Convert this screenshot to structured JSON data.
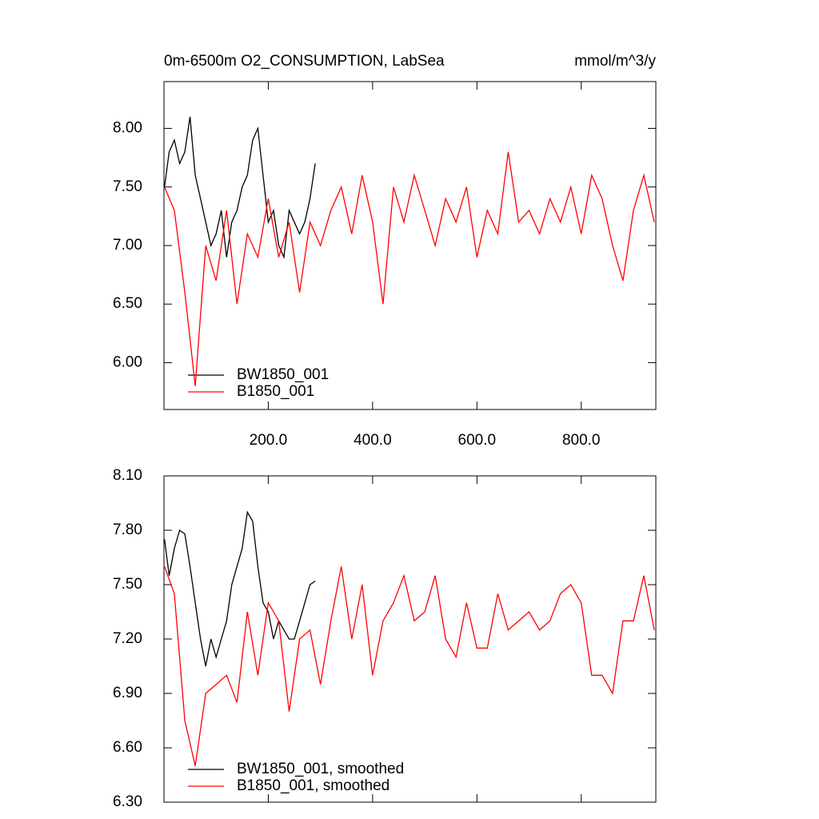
{
  "chart_data": [
    {
      "type": "line",
      "title": "0m-6500m O2_CONSUMPTION, LabSea",
      "subtitle": "mmol/m^3/y",
      "xlim": [
        0,
        943
      ],
      "ylim": [
        5.6,
        8.4
      ],
      "xticks": [
        {
          "value": 200,
          "label": "200.0"
        },
        {
          "value": 400,
          "label": "400.0"
        },
        {
          "value": 600,
          "label": "600.0"
        },
        {
          "value": 800,
          "label": "800.0"
        }
      ],
      "yticks": [
        {
          "value": 6,
          "label": "6.00"
        },
        {
          "value": 6.5,
          "label": "6.50"
        },
        {
          "value": 7,
          "label": "7.00"
        },
        {
          "value": 7.5,
          "label": "7.50"
        },
        {
          "value": 8,
          "label": "8.00"
        }
      ],
      "series": [
        {
          "name": "BW1850_001",
          "color": "#000000",
          "x": [
            1,
            10,
            20,
            30,
            40,
            50,
            60,
            70,
            80,
            90,
            100,
            110,
            120,
            130,
            140,
            150,
            160,
            170,
            180,
            190,
            200,
            210,
            220,
            230,
            240,
            250,
            260,
            270,
            280,
            290
          ],
          "values": [
            7.5,
            7.8,
            7.9,
            7.7,
            7.8,
            8.1,
            7.6,
            7.4,
            7.2,
            7.0,
            7.1,
            7.3,
            6.9,
            7.2,
            7.3,
            7.5,
            7.6,
            7.9,
            8.0,
            7.6,
            7.2,
            7.3,
            7.0,
            6.9,
            7.3,
            7.2,
            7.1,
            7.2,
            7.4,
            7.7
          ]
        },
        {
          "name": "B1850_001",
          "color": "#ff0000",
          "x": [
            1,
            20,
            40,
            60,
            80,
            100,
            120,
            140,
            160,
            180,
            200,
            220,
            240,
            260,
            280,
            300,
            320,
            340,
            360,
            380,
            400,
            420,
            440,
            460,
            480,
            500,
            520,
            540,
            560,
            580,
            600,
            620,
            640,
            660,
            680,
            700,
            720,
            740,
            760,
            780,
            800,
            820,
            840,
            860,
            880,
            900,
            920,
            940
          ],
          "values": [
            7.5,
            7.3,
            6.6,
            5.8,
            7.0,
            6.7,
            7.3,
            6.5,
            7.1,
            6.9,
            7.4,
            6.9,
            7.2,
            6.6,
            7.2,
            7.0,
            7.3,
            7.5,
            7.1,
            7.6,
            7.2,
            6.5,
            7.5,
            7.2,
            7.6,
            7.3,
            7.0,
            7.4,
            7.2,
            7.5,
            6.9,
            7.3,
            7.1,
            7.8,
            7.2,
            7.3,
            7.1,
            7.4,
            7.2,
            7.5,
            7.1,
            7.6,
            7.4,
            7.0,
            6.7,
            7.3,
            7.6,
            7.2
          ]
        }
      ]
    },
    {
      "type": "line",
      "xlim": [
        0,
        943
      ],
      "ylim": [
        6.3,
        8.1
      ],
      "yticks": [
        {
          "value": 6.3,
          "label": "6.30"
        },
        {
          "value": 6.6,
          "label": "6.60"
        },
        {
          "value": 6.9,
          "label": "6.90"
        },
        {
          "value": 7.2,
          "label": "7.20"
        },
        {
          "value": 7.5,
          "label": "7.50"
        },
        {
          "value": 7.8,
          "label": "7.80"
        },
        {
          "value": 8.1,
          "label": "8.10"
        }
      ],
      "series": [
        {
          "name": "BW1850_001, smoothed",
          "color": "#000000",
          "x": [
            1,
            10,
            20,
            30,
            40,
            50,
            60,
            70,
            80,
            90,
            100,
            110,
            120,
            130,
            140,
            150,
            160,
            170,
            180,
            190,
            200,
            210,
            220,
            230,
            240,
            250,
            260,
            270,
            280,
            290
          ],
          "values": [
            7.75,
            7.55,
            7.7,
            7.8,
            7.78,
            7.6,
            7.4,
            7.2,
            7.05,
            7.2,
            7.1,
            7.2,
            7.3,
            7.5,
            7.6,
            7.7,
            7.9,
            7.85,
            7.6,
            7.4,
            7.35,
            7.2,
            7.3,
            7.25,
            7.2,
            7.2,
            7.3,
            7.4,
            7.5,
            7.52
          ]
        },
        {
          "name": "B1850_001, smoothed",
          "color": "#ff0000",
          "x": [
            1,
            20,
            40,
            60,
            80,
            100,
            120,
            140,
            160,
            180,
            200,
            220,
            240,
            260,
            280,
            300,
            320,
            340,
            360,
            380,
            400,
            420,
            440,
            460,
            480,
            500,
            520,
            540,
            560,
            580,
            600,
            620,
            640,
            660,
            680,
            700,
            720,
            740,
            760,
            780,
            800,
            820,
            840,
            860,
            880,
            900,
            920,
            940
          ],
          "values": [
            7.6,
            7.45,
            6.75,
            6.5,
            6.9,
            6.95,
            7.0,
            6.85,
            7.35,
            7.0,
            7.4,
            7.3,
            6.8,
            7.2,
            7.25,
            6.95,
            7.3,
            7.6,
            7.2,
            7.5,
            7.0,
            7.3,
            7.4,
            7.55,
            7.3,
            7.35,
            7.55,
            7.2,
            7.1,
            7.4,
            7.15,
            7.15,
            7.45,
            7.25,
            7.3,
            7.35,
            7.25,
            7.3,
            7.45,
            7.5,
            7.4,
            7.0,
            7.0,
            6.9,
            7.3,
            7.3,
            7.55,
            7.25
          ]
        }
      ]
    }
  ]
}
